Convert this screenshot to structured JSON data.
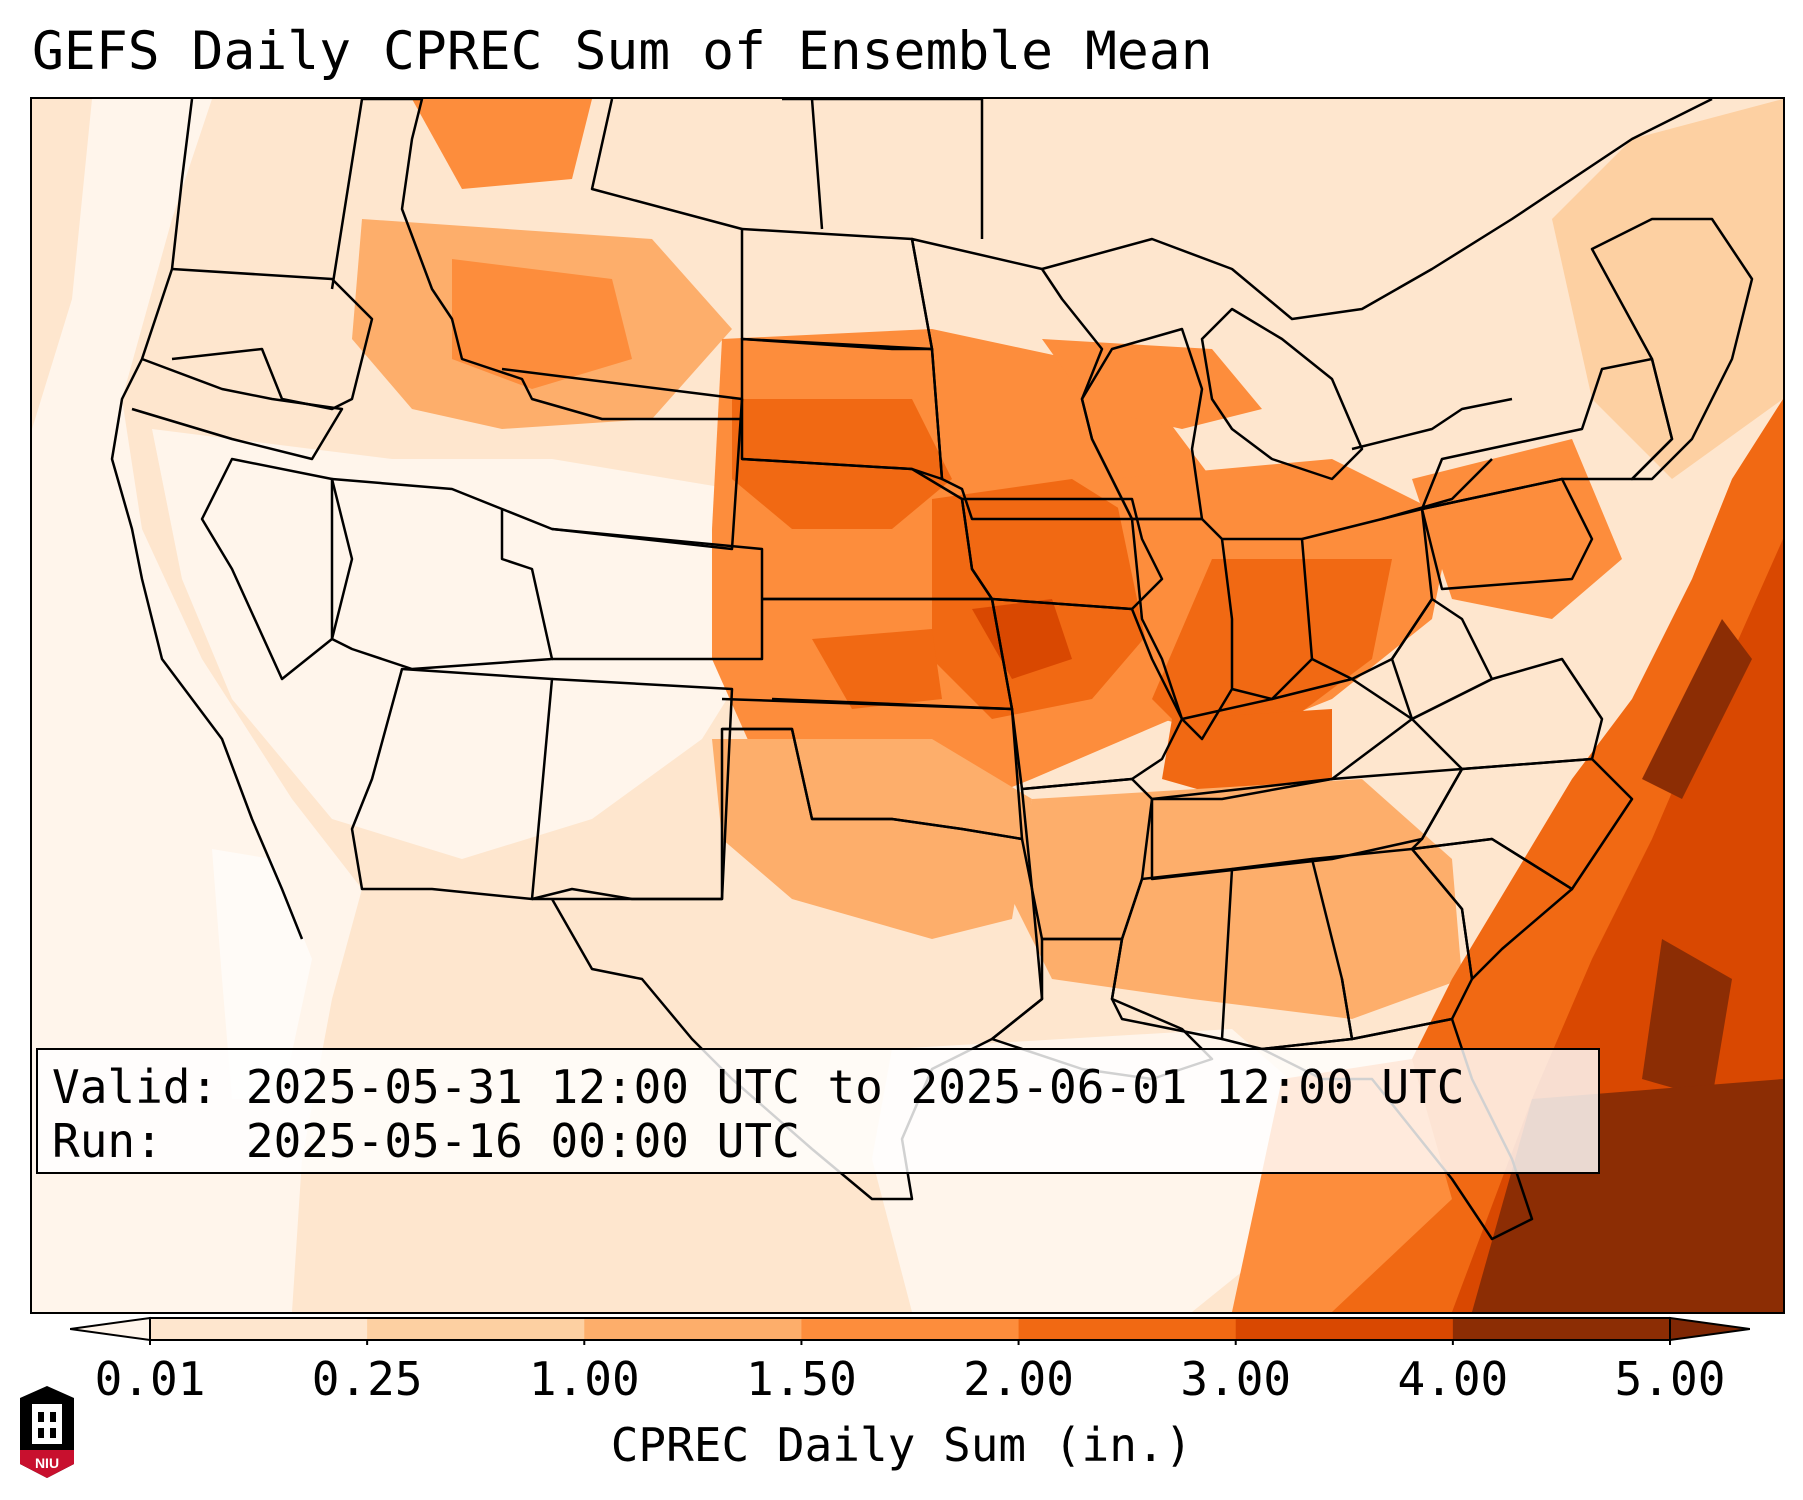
{
  "title": "GEFS Daily CPREC Sum of Ensemble Mean",
  "info": {
    "valid_label": "Valid:",
    "valid_value": "2025-05-31 12:00 UTC to 2025-06-01 12:00 UTC",
    "run_label": "Run:",
    "run_value": "2025-05-16 00:00 UTC"
  },
  "colorbar": {
    "label": "CPREC Daily Sum (in.)",
    "ticks": [
      "0.01",
      "0.25",
      "1.00",
      "1.50",
      "2.00",
      "3.00",
      "4.00",
      "5.00"
    ],
    "colors": [
      "#fff5eb",
      "#fee6ce",
      "#fdd0a2",
      "#fdae6b",
      "#fd8d3c",
      "#f16913",
      "#d94801",
      "#8c2d04"
    ],
    "extend": "both"
  },
  "logo": {
    "text": "NIU",
    "primary_color": "#c8102e",
    "secondary_color": "#000000"
  },
  "map": {
    "projection": "Lambert conformal (CONUS)",
    "region": "Contiguous United States, southern Canada, northern Mexico, Gulf of Mexico, western Atlantic",
    "field": "CPREC daily sum"
  }
}
